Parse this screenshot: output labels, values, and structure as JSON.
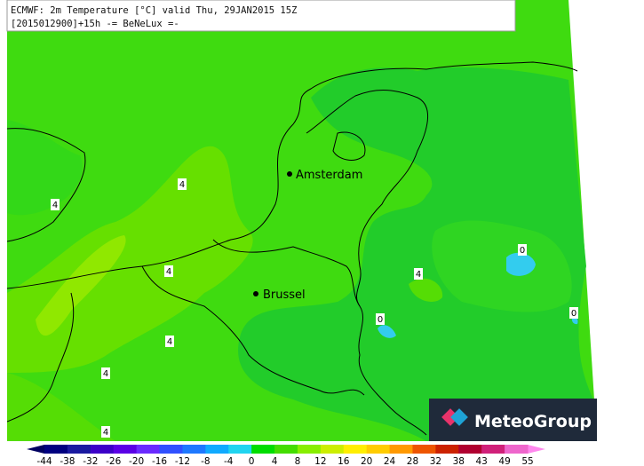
{
  "header": {
    "line1": "ECMWF: 2m Temperature [°C] valid Thu, 29JAN2015 15Z",
    "line2": "[2015012900]+15h -= BeNeLux =-"
  },
  "cities": [
    "Amsterdam",
    "Brussel"
  ],
  "contour_labels": [
    4,
    4,
    4,
    4,
    4,
    4,
    4,
    0,
    0,
    0
  ],
  "legend": {
    "ticks": [
      -44,
      -38,
      -32,
      -26,
      -20,
      -16,
      -12,
      -8,
      -4,
      0,
      4,
      8,
      12,
      16,
      20,
      24,
      28,
      32,
      38,
      43,
      49,
      55
    ],
    "colors": [
      "#000080",
      "#1a1aa0",
      "#3c00c8",
      "#5a00e6",
      "#6a2aff",
      "#3050ff",
      "#1e78ff",
      "#10aaff",
      "#20d4f0",
      "#00dd00",
      "#44dd00",
      "#88ee00",
      "#ccee00",
      "#ffee00",
      "#ffcc00",
      "#ff9900",
      "#ee5500",
      "#cc2200",
      "#b00030",
      "#d0207a",
      "#ee66cc"
    ]
  },
  "logo": "MeteoGroup"
}
